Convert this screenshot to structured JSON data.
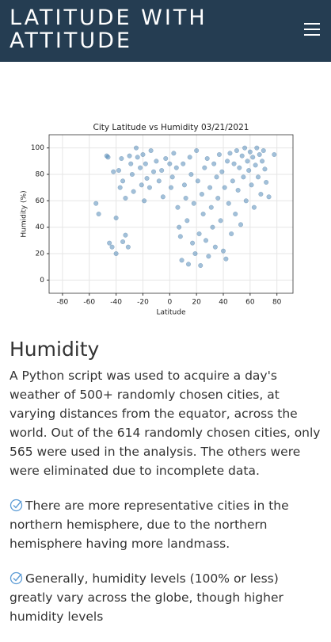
{
  "header": {
    "title": "LATITUDE WITH ATTITUDE"
  },
  "chart_data": {
    "type": "scatter",
    "title": "City Latitude vs Humidity 03/21/2021",
    "x_label": "Latitude",
    "y_label": "Humidity (%)",
    "color": "#4682b4",
    "grid": true,
    "xlim": [
      -90,
      92
    ],
    "xticks": [
      -80,
      -60,
      -40,
      -20,
      0,
      20,
      40,
      60,
      80
    ],
    "ylim": [
      -10,
      110
    ],
    "yticks": [
      0,
      20,
      40,
      60,
      80,
      100
    ],
    "x": [
      -55,
      -53,
      -47,
      -46,
      -45,
      -43,
      -42,
      -40,
      -40,
      -38,
      -37,
      -36,
      -35,
      -35,
      -33,
      -33,
      -31,
      -30,
      -29,
      -28,
      -27,
      -25,
      -24,
      -22,
      -21,
      -20,
      -19,
      -18,
      -17,
      -15,
      -14,
      -12,
      -10,
      -8,
      -6,
      -5,
      -3,
      0,
      1,
      2,
      3,
      5,
      6,
      7,
      8,
      9,
      10,
      11,
      12,
      13,
      14,
      15,
      16,
      17,
      18,
      19,
      20,
      21,
      22,
      23,
      24,
      25,
      26,
      27,
      28,
      29,
      30,
      31,
      32,
      33,
      34,
      35,
      36,
      37,
      38,
      39,
      40,
      41,
      42,
      43,
      44,
      45,
      46,
      47,
      48,
      49,
      50,
      51,
      52,
      53,
      54,
      55,
      56,
      57,
      58,
      59,
      60,
      61,
      62,
      63,
      64,
      65,
      66,
      67,
      68,
      69,
      70,
      71,
      72,
      74,
      78
    ],
    "values": [
      58,
      50,
      94,
      93,
      28,
      25,
      82,
      20,
      47,
      83,
      70,
      92,
      29,
      75,
      62,
      34,
      25,
      94,
      88,
      80,
      67,
      100,
      93,
      85,
      72,
      95,
      60,
      88,
      77,
      70,
      98,
      82,
      90,
      75,
      83,
      63,
      92,
      88,
      70,
      78,
      96,
      85,
      55,
      40,
      33,
      15,
      88,
      72,
      62,
      45,
      12,
      93,
      80,
      28,
      58,
      20,
      98,
      75,
      35,
      11,
      65,
      50,
      85,
      30,
      92,
      18,
      70,
      55,
      40,
      88,
      25,
      78,
      62,
      95,
      45,
      82,
      22,
      70,
      16,
      90,
      58,
      96,
      35,
      75,
      88,
      50,
      98,
      68,
      85,
      42,
      94,
      78,
      100,
      60,
      90,
      83,
      97,
      72,
      93,
      55,
      87,
      100,
      78,
      95,
      65,
      90,
      98,
      84,
      74,
      63,
      95
    ]
  },
  "section": {
    "heading": "Humidity",
    "paragraph": "A Python script was used to acquire a day's weather of 500+ randomly chosen cities, at varying distances from the equator, across the world. Out of the 614 randomly chosen cities, only 565 were used in the analysis. The others were were eliminated due to incomplete data.",
    "bullets": [
      "There are more representative cities in the northern hemisphere, due to the northern hemisphere having more landmass.",
      "Generally, humidity levels (100% or less) greatly vary across the globe, though higher humidity levels"
    ]
  }
}
